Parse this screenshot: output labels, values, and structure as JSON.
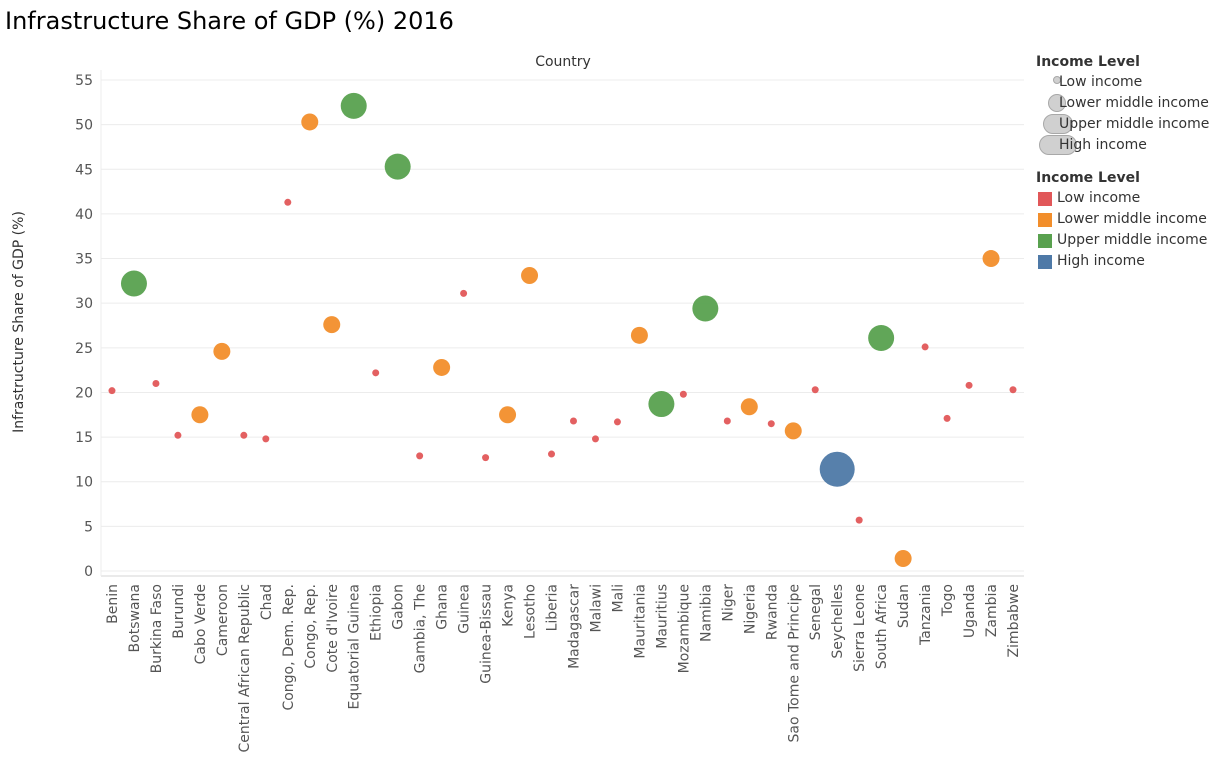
{
  "title": "Infrastructure Share of GDP (%) 2016",
  "chart_data": {
    "type": "scatter",
    "title": "Infrastructure Share of GDP (%) 2016",
    "xlabel": "Country",
    "ylabel": "Infrastructure Share of GDP (%)",
    "ylim": [
      0,
      55
    ],
    "yticks": [
      0,
      5,
      10,
      15,
      20,
      25,
      30,
      35,
      40,
      45,
      50,
      55
    ],
    "grid": true,
    "legend_position": "right",
    "categories": [
      "Benin",
      "Botswana",
      "Burkina Faso",
      "Burundi",
      "Cabo Verde",
      "Cameroon",
      "Central African Republic",
      "Chad",
      "Congo, Dem. Rep.",
      "Congo, Rep.",
      "Cote d'Ivoire",
      "Equatorial Guinea",
      "Ethiopia",
      "Gabon",
      "Gambia, The",
      "Ghana",
      "Guinea",
      "Guinea-Bissau",
      "Kenya",
      "Lesotho",
      "Liberia",
      "Madagascar",
      "Malawi",
      "Mali",
      "Mauritania",
      "Mauritius",
      "Mozambique",
      "Namibia",
      "Niger",
      "Nigeria",
      "Rwanda",
      "Sao Tome and Principe",
      "Senegal",
      "Seychelles",
      "Sierra Leone",
      "South Africa",
      "Sudan",
      "Tanzania",
      "Togo",
      "Uganda",
      "Zambia",
      "Zimbabwe"
    ],
    "values": [
      20.2,
      32.2,
      21.0,
      15.2,
      17.5,
      24.6,
      15.2,
      14.8,
      41.3,
      50.3,
      27.6,
      52.1,
      22.2,
      45.3,
      12.9,
      22.8,
      31.1,
      12.7,
      17.5,
      33.1,
      13.1,
      16.8,
      14.8,
      16.7,
      26.4,
      18.7,
      19.8,
      29.4,
      16.8,
      18.4,
      16.5,
      15.7,
      20.3,
      11.4,
      5.7,
      26.1,
      1.4,
      25.1,
      17.1,
      20.8,
      35.0,
      20.3
    ],
    "income_level": [
      "Low income",
      "Upper middle income",
      "Low income",
      "Low income",
      "Lower middle income",
      "Lower middle income",
      "Low income",
      "Low income",
      "Low income",
      "Lower middle income",
      "Lower middle income",
      "Upper middle income",
      "Low income",
      "Upper middle income",
      "Low income",
      "Lower middle income",
      "Low income",
      "Low income",
      "Lower middle income",
      "Lower middle income",
      "Low income",
      "Low income",
      "Low income",
      "Low income",
      "Lower middle income",
      "Upper middle income",
      "Low income",
      "Upper middle income",
      "Low income",
      "Lower middle income",
      "Low income",
      "Lower middle income",
      "Low income",
      "High income",
      "Low income",
      "Upper middle income",
      "Lower middle income",
      "Low income",
      "Low income",
      "Low income",
      "Lower middle income",
      "Low income"
    ],
    "size_encoding": "Income Level",
    "color_encoding": "Income Level",
    "colors": {
      "Low income": "#e15759",
      "Lower middle income": "#f28e2b",
      "Upper middle income": "#59a14f",
      "High income": "#4e79a7"
    }
  },
  "legend": {
    "size": {
      "title": "Income Level",
      "items": [
        "Low income",
        "Lower middle income",
        "Upper middle income",
        "High income"
      ]
    },
    "color": {
      "title": "Income Level",
      "items": [
        "Low income",
        "Lower middle income",
        "Upper middle income",
        "High income"
      ]
    }
  }
}
